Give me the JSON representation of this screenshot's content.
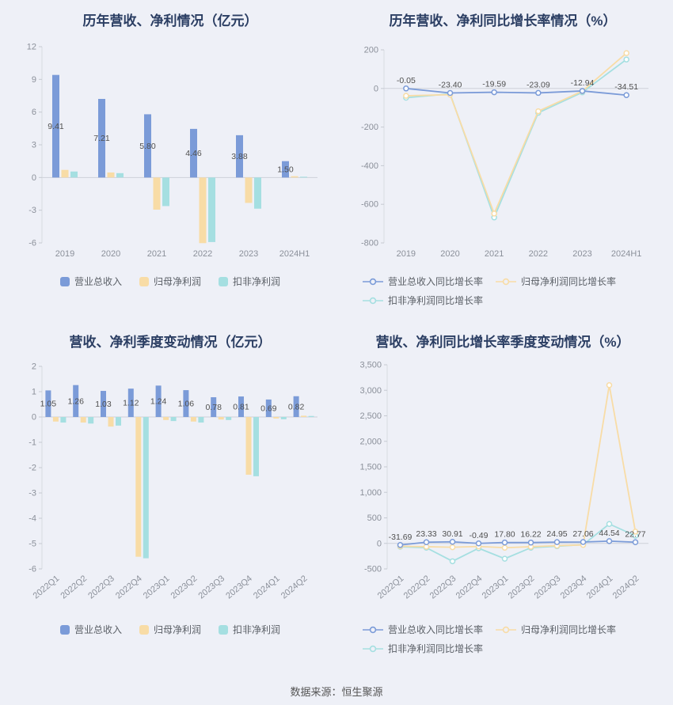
{
  "page": {
    "footer": "数据来源：恒生聚源",
    "background": "#eef0f7"
  },
  "colors": {
    "revenue_blue": "#7b9bd8",
    "net_profit_yellow": "#f8dca6",
    "non_gaap_teal": "#a5dfe1",
    "title_navy": "#2b3e63"
  },
  "chart_data": [
    {
      "type": "bar",
      "title": "历年营收、净利情况（亿元）",
      "categories": [
        "2019",
        "2020",
        "2021",
        "2022",
        "2023",
        "2024H1"
      ],
      "series": [
        {
          "name": "营业总收入",
          "color": "#7b9bd8",
          "values": [
            9.41,
            7.21,
            5.8,
            4.46,
            3.88,
            1.5
          ]
        },
        {
          "name": "归母净利润",
          "color": "#f8dca6",
          "values": [
            0.7,
            0.46,
            -2.95,
            -6.02,
            -2.33,
            0.12
          ]
        },
        {
          "name": "扣非净利润",
          "color": "#a5dfe1",
          "values": [
            0.55,
            0.4,
            -2.62,
            -5.92,
            -2.86,
            0.07
          ]
        }
      ],
      "label_series": 0,
      "labels": [
        "9.41",
        "7.21",
        "5.80",
        "4.46",
        "3.88",
        "1.50"
      ],
      "ylim": [
        -6,
        12
      ],
      "ystep": 3,
      "x_rotate": 0,
      "legend_position": "bottom",
      "grid": false
    },
    {
      "type": "line",
      "title": "历年营收、净利同比增长率情况（%）",
      "categories": [
        "2019",
        "2020",
        "2021",
        "2022",
        "2023",
        "2024H1"
      ],
      "series": [
        {
          "name": "营业总收入同比增长率",
          "color": "#7b9bd8",
          "values": [
            -0.05,
            -23.4,
            -19.59,
            -23.09,
            -12.94,
            -34.51
          ]
        },
        {
          "name": "归母净利润同比增长率",
          "color": "#f8dca6",
          "values": [
            -38,
            -32,
            -648,
            -118,
            -14,
            183
          ]
        },
        {
          "name": "扣非净利润同比增长率",
          "color": "#a5dfe1",
          "values": [
            -48,
            -28,
            -668,
            -126,
            -20,
            150
          ]
        }
      ],
      "label_series": 0,
      "labels": [
        "-0.05",
        "-23.40",
        "-19.59",
        "-23.09",
        "-12.94",
        "-34.51"
      ],
      "ylim": [
        -800,
        200
      ],
      "ystep": 200,
      "x_rotate": 0,
      "legend_position": "bottom",
      "grid": false
    },
    {
      "type": "bar",
      "title": "营收、净利季度变动情况（亿元）",
      "categories": [
        "2022Q1",
        "2022Q2",
        "2022Q3",
        "2022Q4",
        "2023Q1",
        "2023Q2",
        "2023Q3",
        "2023Q4",
        "2024Q1",
        "2024Q2"
      ],
      "series": [
        {
          "name": "营业总收入",
          "color": "#7b9bd8",
          "values": [
            1.05,
            1.26,
            1.03,
            1.12,
            1.24,
            1.06,
            0.78,
            0.81,
            0.69,
            0.82
          ]
        },
        {
          "name": "归母净利润",
          "color": "#f8dca6",
          "values": [
            -0.18,
            -0.22,
            -0.38,
            -5.52,
            -0.12,
            -0.18,
            -0.1,
            -2.28,
            -0.06,
            0.05
          ]
        },
        {
          "name": "扣非净利润",
          "color": "#a5dfe1",
          "values": [
            -0.22,
            -0.26,
            -0.34,
            -5.58,
            -0.16,
            -0.22,
            -0.12,
            -2.34,
            -0.09,
            0.04
          ]
        }
      ],
      "label_series": 0,
      "labels": [
        "1.05",
        "1.26",
        "1.03",
        "1.12",
        "1.24",
        "1.06",
        "0.78",
        "0.81",
        "0.69",
        "0.82"
      ],
      "ylim": [
        -6,
        2
      ],
      "ystep": 1,
      "x_rotate": -40,
      "legend_position": "bottom",
      "grid": false
    },
    {
      "type": "line",
      "title": "营收、净利同比增长率季度变动情况（%）",
      "categories": [
        "2022Q1",
        "2022Q2",
        "2022Q3",
        "2022Q4",
        "2023Q1",
        "2023Q2",
        "2023Q3",
        "2023Q4",
        "2024Q1",
        "2024Q2"
      ],
      "series": [
        {
          "name": "营业总收入同比增长率",
          "color": "#7b9bd8",
          "values": [
            -31.69,
            23.33,
            30.91,
            -0.49,
            17.8,
            16.22,
            24.95,
            27.06,
            44.54,
            22.77
          ]
        },
        {
          "name": "归母净利润同比增长率",
          "color": "#f8dca6",
          "values": [
            -55,
            -65,
            -75,
            -60,
            -85,
            -65,
            -45,
            -30,
            3100,
            230
          ]
        },
        {
          "name": "扣非净利润同比增长率",
          "color": "#a5dfe1",
          "values": [
            -65,
            -85,
            -350,
            -95,
            -300,
            -85,
            -55,
            -25,
            380,
            150
          ]
        }
      ],
      "label_series": 0,
      "labels": [
        "-31.69",
        "23.33",
        "30.91",
        "-0.49",
        "17.80",
        "16.22",
        "24.95",
        "27.06",
        "44.54",
        "22.77"
      ],
      "ylim": [
        -500,
        3500
      ],
      "ystep": 500,
      "x_rotate": -40,
      "legend_position": "bottom",
      "grid": false
    }
  ]
}
